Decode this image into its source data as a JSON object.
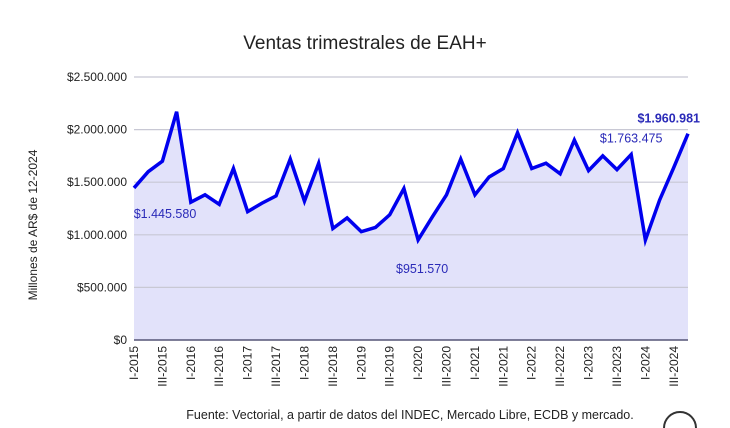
{
  "chart_data": {
    "type": "area",
    "title": "Ventas trimestrales de EAH+",
    "xlabel": "",
    "ylabel": "Millones de AR$ de 12-2024",
    "ylim": [
      0,
      2500000
    ],
    "y_ticks": [
      0,
      500000,
      1000000,
      1500000,
      2000000,
      2500000
    ],
    "y_tick_labels": [
      "$0",
      "$500.000",
      "$1.000.000",
      "$1.500.000",
      "$2.000.000",
      "$2.500.000"
    ],
    "x_tick_labels": [
      "I-2015",
      "III-2015",
      "I-2016",
      "III-2016",
      "I-2017",
      "III-2017",
      "I-2018",
      "III-2018",
      "I-2019",
      "III-2019",
      "I-2020",
      "III-2020",
      "I-2021",
      "III-2021",
      "I-2022",
      "III-2022",
      "I-2023",
      "III-2023",
      "I-2024",
      "III-2024"
    ],
    "series": [
      {
        "name": "Ventas",
        "color": "#0000ee",
        "fill": "#e2e2fa",
        "values": [
          1445580,
          1600000,
          1700000,
          2170000,
          1310000,
          1380000,
          1290000,
          1630000,
          1220000,
          1300000,
          1370000,
          1720000,
          1320000,
          1680000,
          1060000,
          1160000,
          1030000,
          1070000,
          1190000,
          1440000,
          951570,
          1170000,
          1380000,
          1720000,
          1380000,
          1550000,
          1630000,
          1970000,
          1630000,
          1680000,
          1580000,
          1900000,
          1610000,
          1750000,
          1620000,
          1763475,
          950000,
          1330000,
          1640000,
          1960981
        ]
      }
    ],
    "data_labels": [
      {
        "index": 0,
        "text": "$1.445.580",
        "bold": false
      },
      {
        "index": 20,
        "text": "$951.570",
        "bold": false
      },
      {
        "index": 35,
        "text": "$1.763.475",
        "bold": false
      },
      {
        "index": 39,
        "text": "$1.960.981",
        "bold": true
      }
    ],
    "grid": true,
    "legend": "none"
  },
  "source": "Fuente: Vectorial, a partir de datos del INDEC, Mercado Libre, ECDB y mercado."
}
